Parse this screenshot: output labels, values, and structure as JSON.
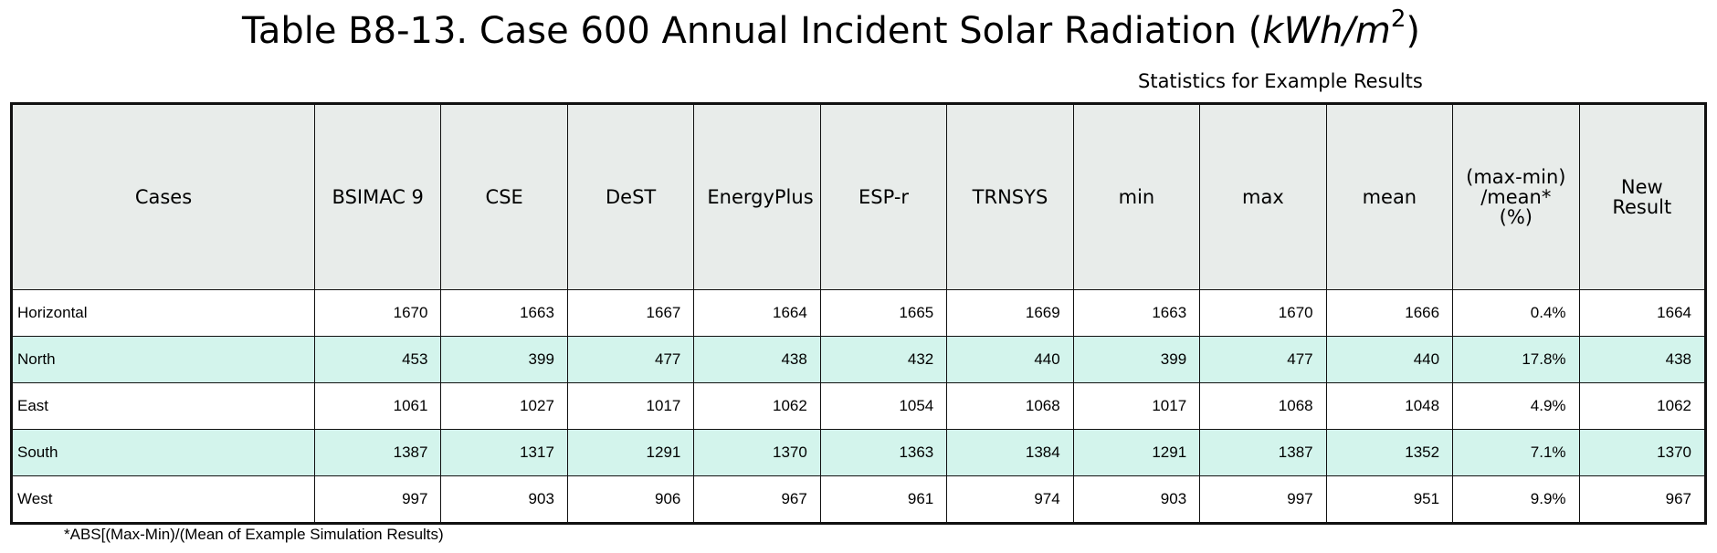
{
  "chart_data": {
    "type": "table",
    "title_prefix": "Table B8-13. Case 600 Annual Incident Solar Radiation (",
    "title_unit": "kWh/m",
    "title_exp": "2",
    "title_suffix": ")",
    "subtitle": "Statistics for Example Results",
    "columns": [
      "Cases",
      "BSIMAC 9",
      "CSE",
      "DeST",
      "EnergyPlus",
      "ESP-r",
      "TRNSYS",
      "min",
      "max",
      "mean",
      "(max-min) /mean*(%)",
      "New Result"
    ],
    "rows": [
      {
        "case": "Horizontal",
        "values": [
          "1670",
          "1663",
          "1667",
          "1664",
          "1665",
          "1669",
          "1663",
          "1670",
          "1666",
          "0.4%",
          "1664"
        ]
      },
      {
        "case": "North",
        "values": [
          "453",
          "399",
          "477",
          "438",
          "432",
          "440",
          "399",
          "477",
          "440",
          "17.8%",
          "438"
        ]
      },
      {
        "case": "East",
        "values": [
          "1061",
          "1027",
          "1017",
          "1062",
          "1054",
          "1068",
          "1017",
          "1068",
          "1048",
          "4.9%",
          "1062"
        ]
      },
      {
        "case": "South",
        "values": [
          "1387",
          "1317",
          "1291",
          "1370",
          "1363",
          "1384",
          "1291",
          "1387",
          "1352",
          "7.1%",
          "1370"
        ]
      },
      {
        "case": "West",
        "values": [
          "997",
          "903",
          "906",
          "967",
          "961",
          "974",
          "903",
          "997",
          "951",
          "9.9%",
          "967"
        ]
      }
    ],
    "footnote": "*ABS[(Max-Min)/(Mean of Example Simulation Results)",
    "header_color": "#e8ecea",
    "stripe_color": "#d3f4ec"
  }
}
